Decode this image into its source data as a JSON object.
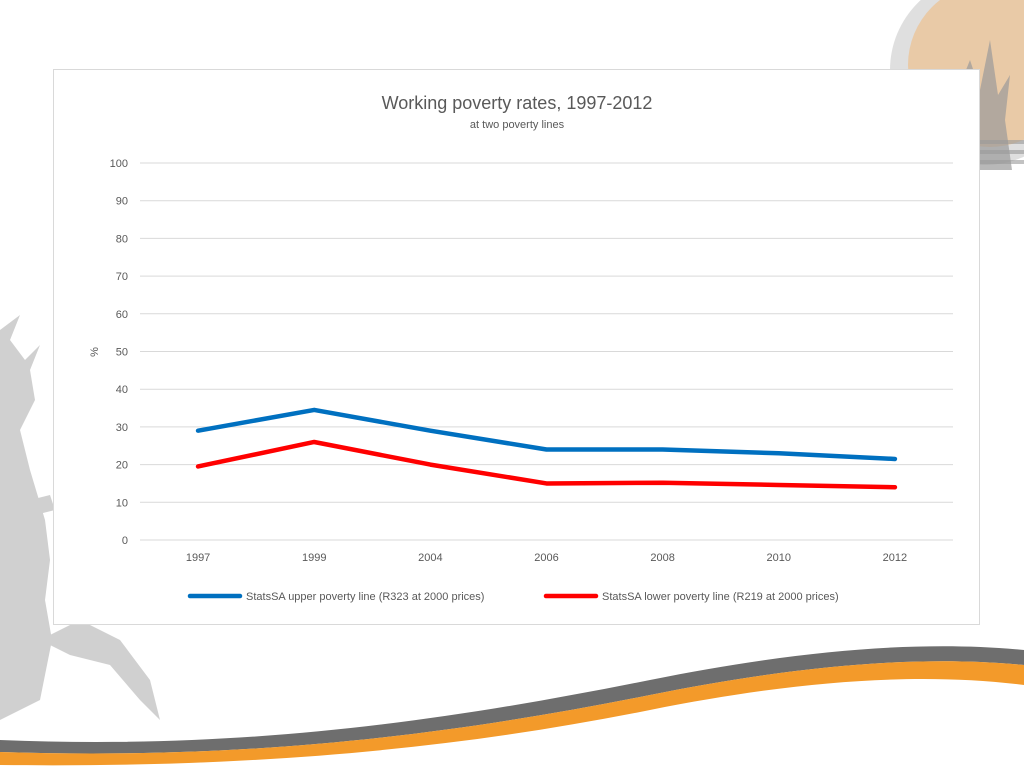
{
  "chart_data": {
    "type": "line",
    "title": "Working poverty rates, 1997-2012",
    "subtitle": "at two poverty lines",
    "xlabel": "",
    "ylabel": "%",
    "categories": [
      "1997",
      "1999",
      "2004",
      "2006",
      "2008",
      "2010",
      "2012"
    ],
    "ylim": [
      0,
      100
    ],
    "yticks": [
      0,
      10,
      20,
      30,
      40,
      50,
      60,
      70,
      80,
      90,
      100
    ],
    "grid": true,
    "legend_position": "bottom",
    "series": [
      {
        "name": "StatsSA upper poverty line (R323 at 2000 prices)",
        "color": "#0070c0",
        "values": [
          29,
          34.5,
          29,
          24,
          24,
          23,
          21.5
        ]
      },
      {
        "name": "StatsSA lower poverty line (R219 at 2000 prices)",
        "color": "#ff0000",
        "values": [
          19.5,
          26,
          20,
          15,
          15.2,
          14.6,
          14
        ]
      }
    ]
  }
}
